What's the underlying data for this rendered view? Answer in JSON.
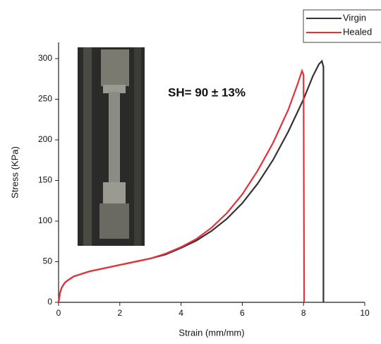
{
  "chart_data": {
    "type": "line",
    "x_label": "Strain (mm/mm)",
    "y_label": "Stress (KPa)",
    "annotation": "SH= 90 ± 13%",
    "xlim": [
      0,
      10
    ],
    "ylim": [
      0,
      320
    ],
    "xticks": [
      0,
      2,
      4,
      6,
      8,
      10
    ],
    "yticks": [
      0,
      50,
      100,
      150,
      200,
      250,
      300
    ],
    "series": [
      {
        "name": "Virgin",
        "color": "#333333",
        "x": [
          0,
          0.05,
          0.1,
          0.2,
          0.3,
          0.5,
          1,
          1.5,
          2,
          2.5,
          3,
          3.5,
          4,
          4.5,
          5,
          5.5,
          6,
          6.5,
          7,
          7.5,
          8,
          8.3,
          8.5,
          8.6,
          8.65,
          8.65
        ],
        "values": [
          0,
          12,
          18,
          24,
          27,
          32,
          38,
          42,
          46,
          50,
          54,
          59,
          67,
          76,
          88,
          103,
          122,
          146,
          175,
          210,
          250,
          278,
          293,
          297,
          290,
          0
        ]
      },
      {
        "name": "Healed",
        "color": "#e8303a",
        "x": [
          0,
          0.05,
          0.1,
          0.2,
          0.3,
          0.5,
          1,
          1.5,
          2,
          2.5,
          3,
          3.5,
          4,
          4.5,
          5,
          5.5,
          6,
          6.5,
          7,
          7.5,
          7.8,
          7.95,
          8.0,
          8.02
        ],
        "values": [
          0,
          12,
          18,
          24,
          27,
          32,
          38,
          42,
          46,
          50,
          54,
          60,
          68,
          78,
          92,
          110,
          133,
          162,
          196,
          237,
          268,
          285,
          280,
          0
        ]
      }
    ]
  }
}
